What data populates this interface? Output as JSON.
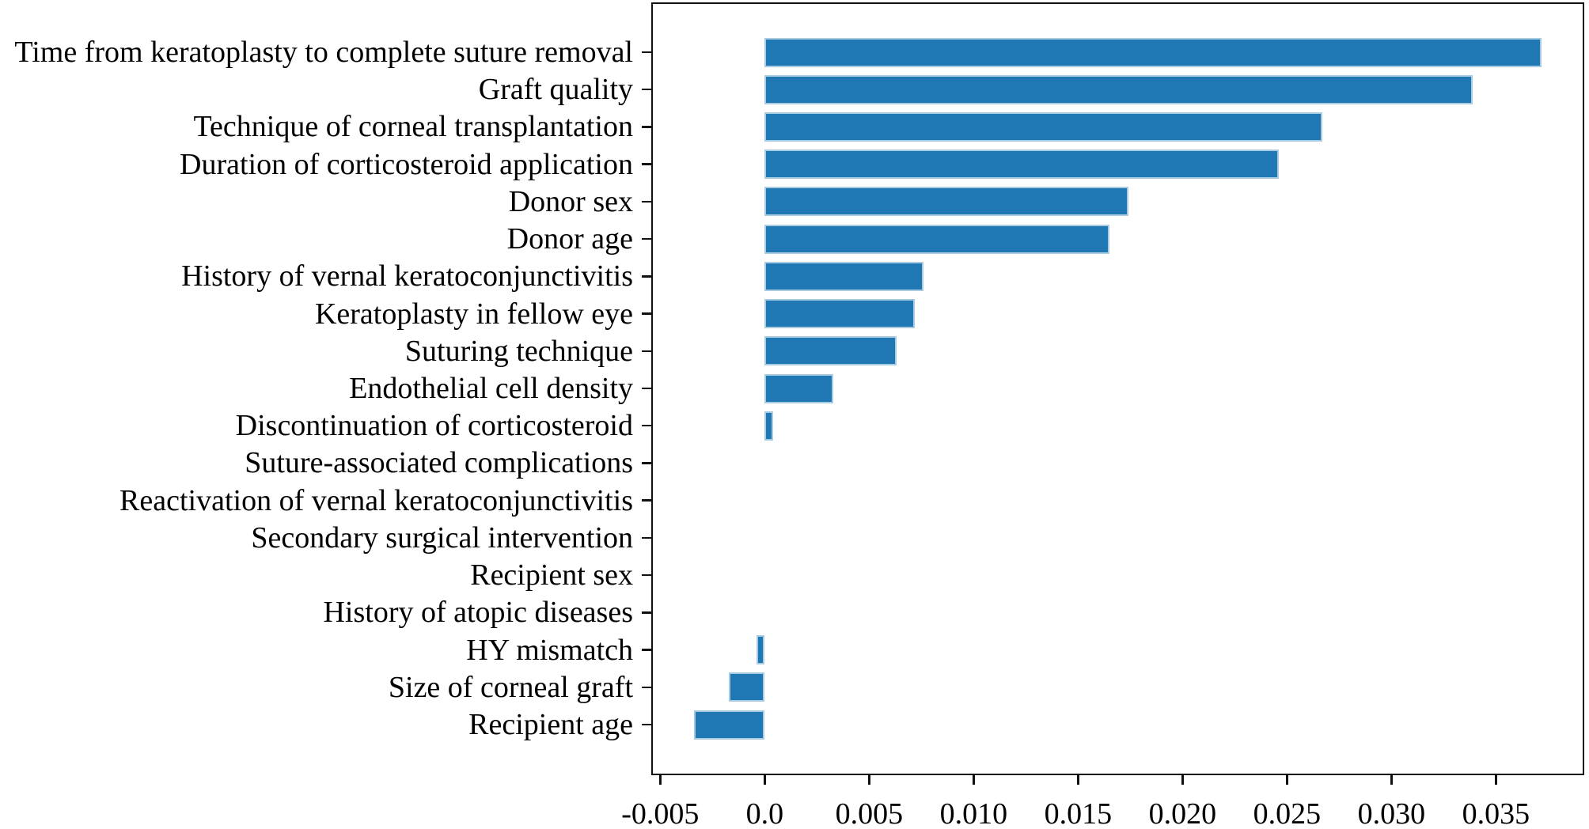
{
  "figure": {
    "background": "#ffffff",
    "title": ""
  },
  "chart_data": {
    "type": "bar",
    "orientation": "horizontal",
    "title": "",
    "xlabel": "",
    "ylabel": "",
    "grid": false,
    "legend": null,
    "categories": [
      "Time from keratoplasty to complete suture removal",
      "Graft quality",
      "Technique of corneal transplantation",
      "Duration of corticosteroid application",
      "Donor sex",
      "Donor age",
      "History of vernal keratoconjunctivitis",
      "Keratoplasty in fellow eye",
      "Suturing technique",
      "Endothelial cell density",
      "Discontinuation of corticosteroid",
      "Suture-associated complications",
      "Reactivation of vernal keratoconjunctivitis",
      "Secondary surgical intervention",
      "Recipient sex",
      "History of atopic diseases",
      "HY mismatch",
      "Size of corneal graft",
      "Recipient age"
    ],
    "values": [
      0.0372,
      0.0339,
      0.0267,
      0.0246,
      0.0174,
      0.0165,
      0.0076,
      0.0072,
      0.0063,
      0.0033,
      0.0004,
      0.0,
      0.0,
      0.0,
      0.0,
      0.0,
      -0.0004,
      -0.0017,
      -0.0034
    ],
    "xlim": [
      -0.00543,
      0.03923
    ],
    "x_ticks": [
      -0.005,
      0.0,
      0.005,
      0.01,
      0.015,
      0.02,
      0.025,
      0.03,
      0.035
    ],
    "x_tick_labels": [
      "-0.005",
      "0.0",
      "0.005",
      "0.010",
      "0.015",
      "0.020",
      "0.025",
      "0.030",
      "0.035"
    ],
    "bar_color": "#1f77b4",
    "bar_edge_color": "#a8cbe2",
    "axis_color": "#111111",
    "text_color": "#000000"
  }
}
